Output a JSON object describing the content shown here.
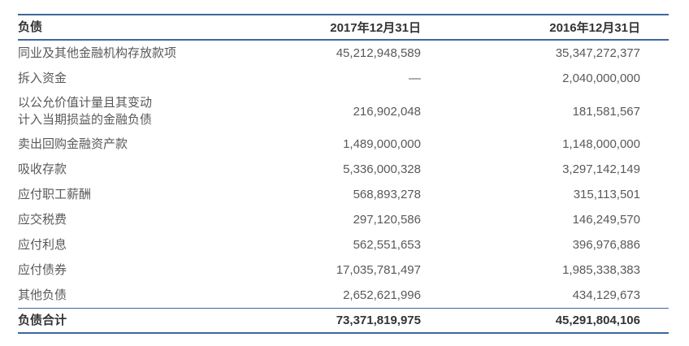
{
  "table": {
    "header": {
      "section_label": "负债",
      "col_2017": "2017年12月31日",
      "col_2016": "2016年12月31日"
    },
    "rows": [
      {
        "label": "同业及其他金融机构存放款项",
        "v2017": "45,212,948,589",
        "v2016": "35,347,272,377"
      },
      {
        "label": "拆入资金",
        "v2017": "—",
        "v2016": "2,040,000,000"
      },
      {
        "label": "以公允价值计量且其变动\n计入当期损益的金融负债",
        "v2017": "216,902,048",
        "v2016": "181,581,567"
      },
      {
        "label": "卖出回购金融资产款",
        "v2017": "1,489,000,000",
        "v2016": "1,148,000,000"
      },
      {
        "label": "吸收存款",
        "v2017": "5,336,000,328",
        "v2016": "3,297,142,149"
      },
      {
        "label": "应付职工薪酬",
        "v2017": "568,893,278",
        "v2016": "315,113,501"
      },
      {
        "label": "应交税费",
        "v2017": "297,120,586",
        "v2016": "146,249,570"
      },
      {
        "label": "应付利息",
        "v2017": "562,551,653",
        "v2016": "396,976,886"
      },
      {
        "label": "应付债券",
        "v2017": "17,035,781,497",
        "v2016": "1,985,338,383"
      },
      {
        "label": "其他负债",
        "v2017": "2,652,621,996",
        "v2016": "434,129,673"
      }
    ],
    "total": {
      "label": "负债合计",
      "v2017": "73,371,819,975",
      "v2016": "45,291,804,106"
    },
    "colors": {
      "rule_blue": "#3e689b",
      "text_dark": "#333333",
      "text_gray": "#595959"
    }
  }
}
